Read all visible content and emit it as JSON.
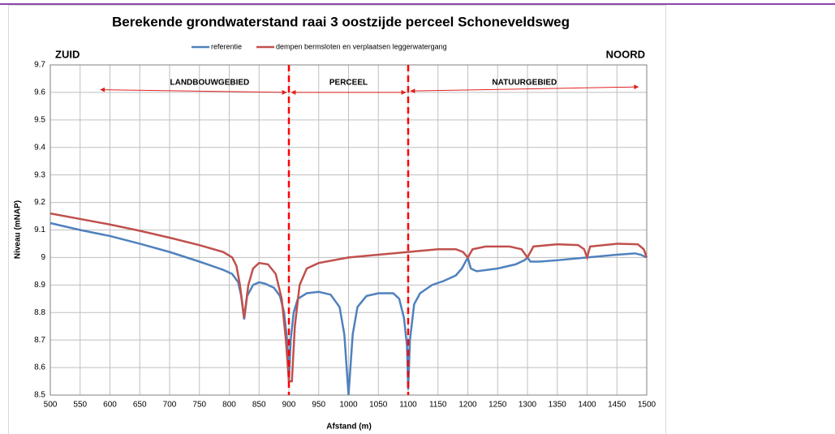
{
  "chart_data": {
    "type": "line",
    "title": "Berekende grondwaterstand raai 3 oostzijde perceel Schoneveldsweg",
    "xlabel": "Afstand (m)",
    "ylabel": "Niveau (mNAP)",
    "xlim": [
      500,
      1500
    ],
    "xticks": [
      500,
      550,
      600,
      650,
      700,
      750,
      800,
      850,
      900,
      950,
      1000,
      1050,
      1100,
      1150,
      1200,
      1250,
      1300,
      1350,
      1400,
      1450,
      1500
    ],
    "ylim": [
      8.5,
      9.7
    ],
    "yticks": [
      8.5,
      8.6,
      8.7,
      8.8,
      8.9,
      9,
      9.1,
      9.2,
      9.3,
      9.4,
      9.5,
      9.6,
      9.7
    ],
    "grid": true,
    "legend": "top",
    "series": [
      {
        "name": "referentie",
        "color": "#4f81bd",
        "x": [
          500,
          550,
          600,
          650,
          700,
          750,
          790,
          805,
          815,
          820,
          825,
          830,
          840,
          850,
          860,
          875,
          885,
          892,
          897,
          900,
          903,
          908,
          915,
          930,
          950,
          970,
          985,
          993,
          1000,
          1007,
          1015,
          1030,
          1050,
          1075,
          1085,
          1093,
          1098,
          1100,
          1103,
          1110,
          1120,
          1140,
          1160,
          1180,
          1190,
          1200,
          1205,
          1215,
          1250,
          1280,
          1295,
          1300,
          1305,
          1320,
          1350,
          1400,
          1450,
          1480,
          1490,
          1500
        ],
        "values": [
          9.125,
          9.1,
          9.078,
          9.05,
          9.02,
          8.985,
          8.955,
          8.94,
          8.91,
          8.86,
          8.775,
          8.86,
          8.9,
          8.91,
          8.905,
          8.89,
          8.86,
          8.8,
          8.7,
          8.55,
          8.7,
          8.8,
          8.85,
          8.87,
          8.875,
          8.865,
          8.82,
          8.72,
          8.5,
          8.72,
          8.82,
          8.86,
          8.87,
          8.87,
          8.85,
          8.78,
          8.68,
          8.52,
          8.7,
          8.83,
          8.87,
          8.9,
          8.915,
          8.935,
          8.96,
          9.0,
          8.96,
          8.95,
          8.96,
          8.975,
          8.99,
          9.0,
          8.985,
          8.985,
          8.99,
          9.0,
          9.01,
          9.015,
          9.01,
          9.0
        ]
      },
      {
        "name": "dempen bermsloten en verplaatsen leggerwatergang",
        "color": "#c0504d",
        "x": [
          500,
          550,
          600,
          650,
          700,
          750,
          790,
          805,
          812,
          818,
          825,
          832,
          840,
          850,
          865,
          878,
          888,
          895,
          900,
          905,
          910,
          918,
          930,
          950,
          1000,
          1050,
          1100,
          1150,
          1180,
          1192,
          1200,
          1208,
          1230,
          1270,
          1290,
          1300,
          1310,
          1350,
          1385,
          1395,
          1400,
          1405,
          1450,
          1485,
          1495,
          1500
        ],
        "values": [
          9.16,
          9.14,
          9.12,
          9.097,
          9.072,
          9.045,
          9.02,
          9.0,
          8.97,
          8.9,
          8.78,
          8.9,
          8.96,
          8.98,
          8.975,
          8.94,
          8.85,
          8.7,
          8.55,
          8.55,
          8.75,
          8.9,
          8.96,
          8.98,
          9.0,
          9.01,
          9.02,
          9.03,
          9.03,
          9.02,
          9.0,
          9.03,
          9.04,
          9.04,
          9.03,
          9.0,
          9.04,
          9.048,
          9.045,
          9.03,
          9.0,
          9.04,
          9.05,
          9.048,
          9.03,
          9.0
        ]
      }
    ],
    "vlines": [
      900,
      1100
    ],
    "corner_labels": [
      "ZUID",
      "NOORD"
    ],
    "regions": [
      {
        "label": "LANDBOUWGEBIED",
        "from": 580,
        "to": 900,
        "y_from": 9.61,
        "y_to": 9.6
      },
      {
        "label": "PERCEEL",
        "from": 900,
        "to": 1100,
        "y_from": 9.6,
        "y_to": 9.6
      },
      {
        "label": "NATUURGEBIED",
        "from": 1100,
        "to": 1490,
        "y_from": 9.605,
        "y_to": 9.62
      }
    ]
  }
}
